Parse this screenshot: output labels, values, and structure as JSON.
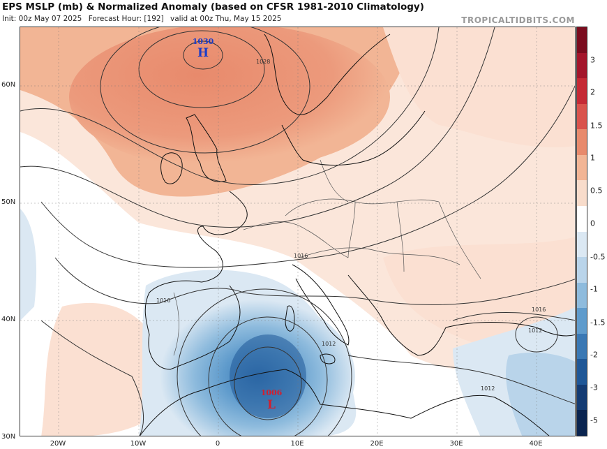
{
  "header": {
    "title": "EPS MSLP (mb) & Normalized Anomaly (based on CFSR 1981-2010 Climatology)",
    "init": "Init: 00z May 07 2025",
    "forecast_hour": "Forecast Hour: [192]",
    "valid": "valid at 00z Thu, May 15 2025",
    "brand": "TROPICALTIDBITS.COM"
  },
  "axes": {
    "lat_labels": [
      "60N",
      "50N",
      "40N",
      "30N"
    ],
    "lon_labels": [
      "20W",
      "10W",
      "0",
      "10E",
      "20E",
      "30E",
      "40E"
    ]
  },
  "colorbar": {
    "labels": [
      "3",
      "2",
      "1.5",
      "1",
      "0.5",
      "0",
      "-0.5",
      "-1",
      "-1.5",
      "-2",
      "-3",
      "-5"
    ],
    "colors": [
      "#7a0c1e",
      "#a3152b",
      "#c52a35",
      "#d9534c",
      "#e88a6c",
      "#f2b595",
      "#f8dccb",
      "#ffffff",
      "#dbe8f3",
      "#b9d4ea",
      "#8ebbdd",
      "#5f9bcc",
      "#3a78b4",
      "#1f5797",
      "#143b73",
      "#0a2450"
    ]
  },
  "map": {
    "high": {
      "letter": "H",
      "value": "1030",
      "color": "#1a3cc8"
    },
    "low": {
      "letter": "L",
      "value": "1006",
      "color": "#d21f2f"
    },
    "isobar_labels": [
      "1016",
      "1016",
      "1012",
      "1016",
      "1012",
      "1012",
      "1028"
    ]
  }
}
